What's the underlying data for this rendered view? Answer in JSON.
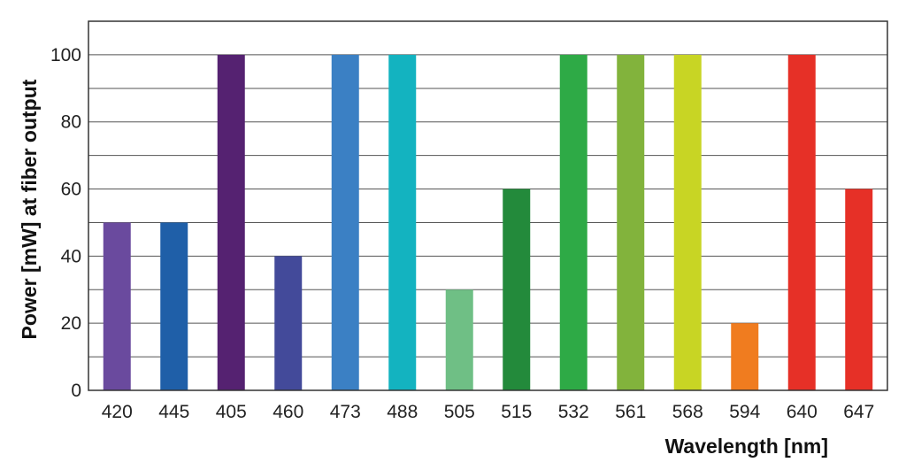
{
  "chart_data": {
    "type": "bar",
    "categories": [
      "420",
      "445",
      "405",
      "460",
      "473",
      "488",
      "505",
      "515",
      "532",
      "561",
      "568",
      "594",
      "640",
      "647"
    ],
    "values": [
      50,
      50,
      100,
      40,
      100,
      100,
      30,
      60,
      100,
      100,
      100,
      20,
      100,
      60
    ],
    "colors": [
      "#6a4a9e",
      "#1f5fa8",
      "#552271",
      "#434a9a",
      "#3b80c4",
      "#13b3c0",
      "#6fbf85",
      "#238a3b",
      "#2eaa46",
      "#82b33c",
      "#c8d524",
      "#f07c1f",
      "#e63027",
      "#e63027"
    ],
    "xlabel": "Wavelength [nm]",
    "ylabel": "Power [mW] at fiber output",
    "ylim": [
      0,
      110
    ],
    "yticks": [
      0,
      20,
      40,
      60,
      80,
      100
    ],
    "grid_step": 10,
    "grid": true,
    "legend": false
  }
}
